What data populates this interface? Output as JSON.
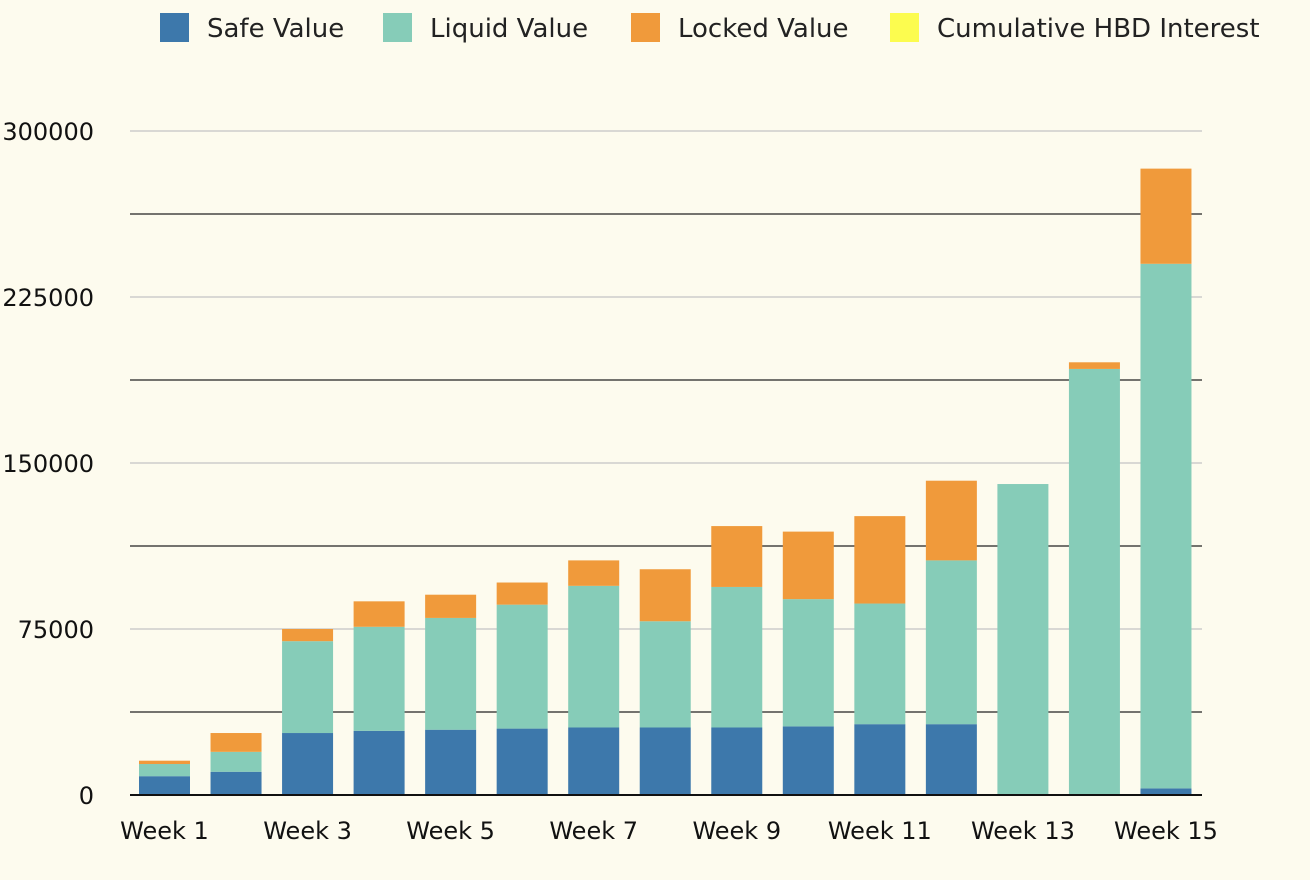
{
  "chart_data": {
    "type": "bar",
    "stacked": true,
    "title": "",
    "xlabel": "",
    "ylabel": "",
    "ylim": [
      0,
      300000
    ],
    "yticks": [
      0,
      75000,
      150000,
      225000,
      300000
    ],
    "grid": true,
    "legend_position": "top",
    "categories": [
      "Week 1",
      "Week 2",
      "Week 3",
      "Week 4",
      "Week 5",
      "Week 6",
      "Week 7",
      "Week 8",
      "Week 9",
      "Week 10",
      "Week 11",
      "Week 12",
      "Week 13",
      "Week 14",
      "Week 15"
    ],
    "x_tick_labels": [
      "Week 1",
      "Week 3",
      "Week 5",
      "Week 7",
      "Week 9",
      "Week 11",
      "Week 13",
      "Week 15"
    ],
    "series": [
      {
        "name": "Safe Value",
        "color": "#3d78ab",
        "values": [
          8500,
          10500,
          28000,
          29000,
          29500,
          30000,
          30500,
          30500,
          30500,
          31000,
          32000,
          32000,
          0,
          0,
          3000
        ]
      },
      {
        "name": "Liquid Value",
        "color": "#86ccb8",
        "values": [
          5500,
          9000,
          41500,
          47000,
          50500,
          56000,
          64000,
          48000,
          63500,
          57500,
          54500,
          74000,
          140500,
          192500,
          237000
        ]
      },
      {
        "name": "Locked Value",
        "color": "#f09a3b",
        "values": [
          1500,
          8500,
          5500,
          11500,
          10500,
          10000,
          11500,
          23500,
          27500,
          30500,
          39500,
          36000,
          0,
          3000,
          43000
        ]
      },
      {
        "name": "Cumulative HBD Interest",
        "color": "#fcfc4f",
        "values": [
          0,
          0,
          0,
          0,
          0,
          0,
          0,
          0,
          0,
          0,
          0,
          0,
          0,
          0,
          0
        ]
      }
    ]
  }
}
